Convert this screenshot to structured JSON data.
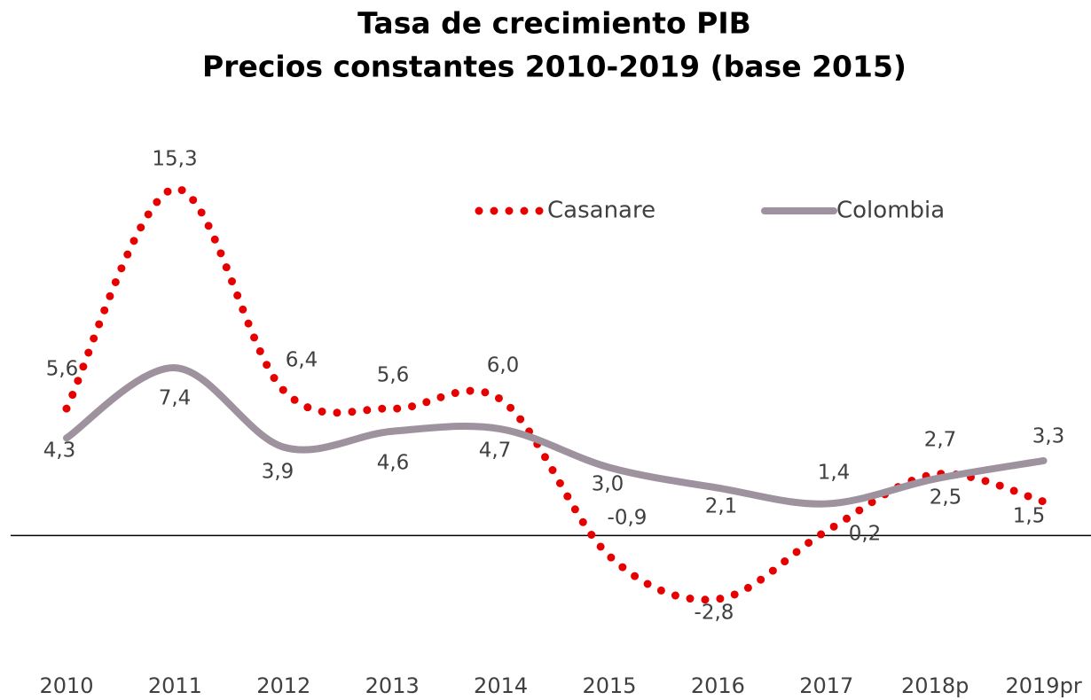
{
  "chart_data": {
    "type": "line",
    "title": [
      "Tasa de crecimiento PIB",
      "Precios constantes 2010-2019  (base 2015)"
    ],
    "categories": [
      "2010",
      "2011",
      "2012",
      "2013",
      "2014",
      "2015",
      "2016",
      "2017",
      "2018p",
      "2019pr"
    ],
    "series": [
      {
        "name": "Casanare",
        "color": "#e60000",
        "style": "dotted",
        "values": [
          5.6,
          15.3,
          6.4,
          5.6,
          6.0,
          -0.9,
          -2.8,
          0.2,
          2.7,
          1.5
        ],
        "value_labels": [
          "5,6",
          "15,3",
          "6,4",
          "5,6",
          "6,0",
          "-0,9",
          "-2,8",
          "0,2",
          "2,7",
          "1,5"
        ]
      },
      {
        "name": "Colombia",
        "color": "#9e929f",
        "style": "solid",
        "values": [
          4.3,
          7.4,
          3.9,
          4.6,
          4.7,
          3.0,
          2.1,
          1.4,
          2.5,
          3.3
        ],
        "value_labels": [
          "4,3",
          "7,4",
          "3,9",
          "4,6",
          "4,7",
          "3,0",
          "2,1",
          "1,4",
          "2,5",
          "3,3"
        ]
      }
    ],
    "smooth": true
  }
}
